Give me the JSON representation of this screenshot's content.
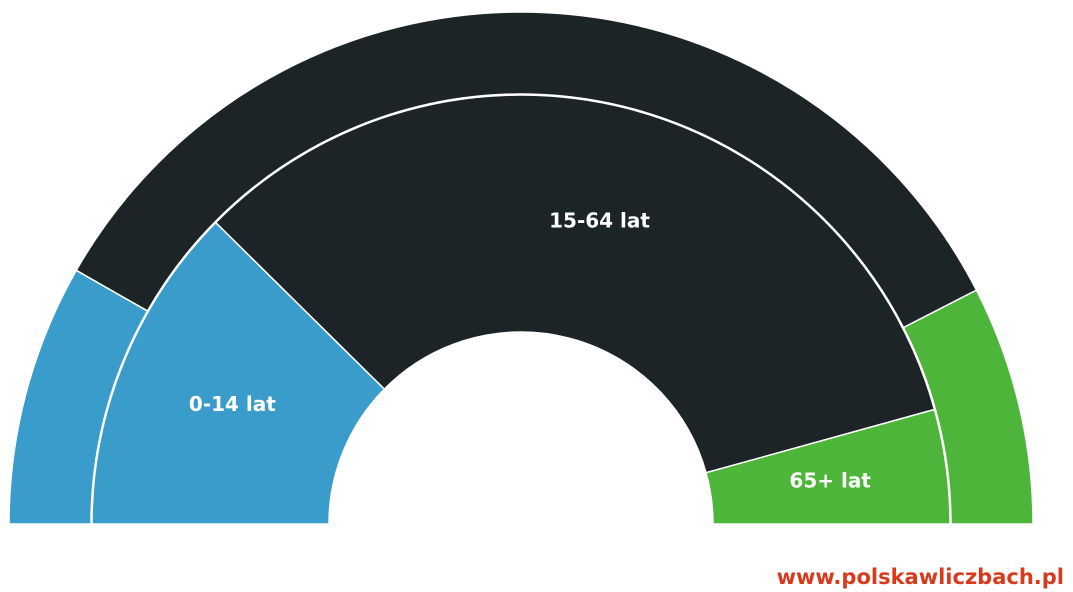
{
  "chart_data": {
    "type": "semi-donut",
    "categories": [
      "0-14 lat",
      "15-64 lat",
      "65+ lat"
    ],
    "colors": [
      "#3a9ccb",
      "#1c2427",
      "#4cb53a"
    ],
    "series": [
      {
        "values": [
          16.5,
          68.4,
          15.1
        ]
      },
      {
        "values": [
          24.8,
          66.6,
          8.6
        ]
      }
    ],
    "source": "www.polskawliczbach.pl"
  }
}
